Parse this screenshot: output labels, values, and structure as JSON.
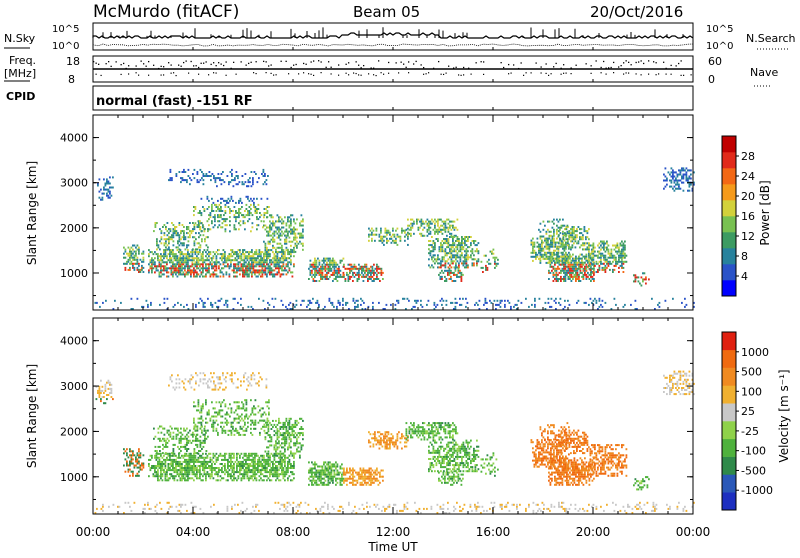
{
  "header": {
    "station": "McMurdo (fitACF)",
    "beam": "Beam 05",
    "date": "20/Oct/2016"
  },
  "panels": {
    "nsky_label": "N.Sky",
    "nsearch_label": "N.Search",
    "nsky_ticks": [
      "10^5",
      "10^0"
    ],
    "nsearch_ticks": [
      "10^5",
      "10^0"
    ],
    "freq_label_1": "Freq.",
    "freq_label_2": "[MHz]",
    "freq_ticks": [
      "18",
      "8"
    ],
    "nave_label": "Nave",
    "nave_ticks": [
      "60",
      "0"
    ],
    "cpid_label": "CPID",
    "cpid_text": "normal (fast) -151 RF"
  },
  "chart_data": [
    {
      "type": "heatmap",
      "name": "Power",
      "ylabel": "Slant Range [km]",
      "yticks": [
        "4000",
        "3000",
        "2000",
        "1000"
      ],
      "ytick_values": [
        4000,
        3000,
        2000,
        1000
      ],
      "ylim": [
        180,
        4500
      ],
      "xlim_hours": [
        0,
        24
      ],
      "colorbar_label": "Power [dB]",
      "colorbar_ticks": [
        "28",
        "24",
        "20",
        "16",
        "12",
        "8",
        "4"
      ],
      "colorbar_colors": [
        "#0000ff",
        "#2a53c8",
        "#27829d",
        "#3c9b62",
        "#78c151",
        "#d2d13b",
        "#f59a1b",
        "#f36815",
        "#e12a1a",
        "#c00000"
      ]
    },
    {
      "type": "heatmap",
      "name": "Velocity",
      "ylabel": "Slant Range [km]",
      "yticks": [
        "4000",
        "3000",
        "2000",
        "1000"
      ],
      "ytick_values": [
        4000,
        3000,
        2000,
        1000
      ],
      "ylim": [
        180,
        4500
      ],
      "xlim_hours": [
        0,
        24
      ],
      "colorbar_label": "Velocity [m s⁻¹]",
      "colorbar_ticks": [
        "1000",
        "500",
        "100",
        "25",
        "-25",
        "-100",
        "-500",
        "-1000"
      ],
      "colorbar_colors": [
        "#1d2fc0",
        "#2a58b8",
        "#2f8a4a",
        "#4fb23d",
        "#8fd24a",
        "#c8c8c8",
        "#f0b030",
        "#f08a20",
        "#f06a10",
        "#e02010"
      ]
    }
  ],
  "xaxis": {
    "label": "Time UT",
    "ticks": [
      "00:00",
      "04:00",
      "08:00",
      "12:00",
      "16:00",
      "20:00",
      "00:00"
    ],
    "tick_hours": [
      0,
      4,
      8,
      12,
      16,
      20,
      24
    ]
  }
}
